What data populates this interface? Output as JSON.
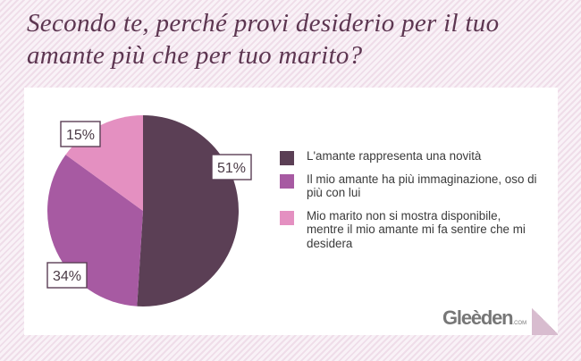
{
  "title": "Secondo te, perché provi desiderio per il tuo amante più che per tuo marito?",
  "logo": {
    "text": "Gleèden",
    "suffix": ".COM"
  },
  "colors": {
    "slice1": "#5b3f55",
    "slice2": "#a75aa2",
    "slice3": "#e490c1",
    "label_border": "#5b3f55"
  },
  "chart_data": {
    "type": "pie",
    "title": "Secondo te, perché provi desiderio per il tuo amante più che per tuo marito?",
    "slices": [
      {
        "label": "L'amante rappresenta una novità",
        "value": 51,
        "value_label": "51%",
        "color": "#5b3f55"
      },
      {
        "label": "Il mio amante ha più immaginazione, oso di più con lui",
        "value": 34,
        "value_label": "34%",
        "color": "#a75aa2"
      },
      {
        "label": "Mio marito non si mostra disponibile, mentre il mio amante mi fa sentire che mi desidera",
        "value": 15,
        "value_label": "15%",
        "color": "#e490c1"
      }
    ],
    "legend_position": "right"
  }
}
